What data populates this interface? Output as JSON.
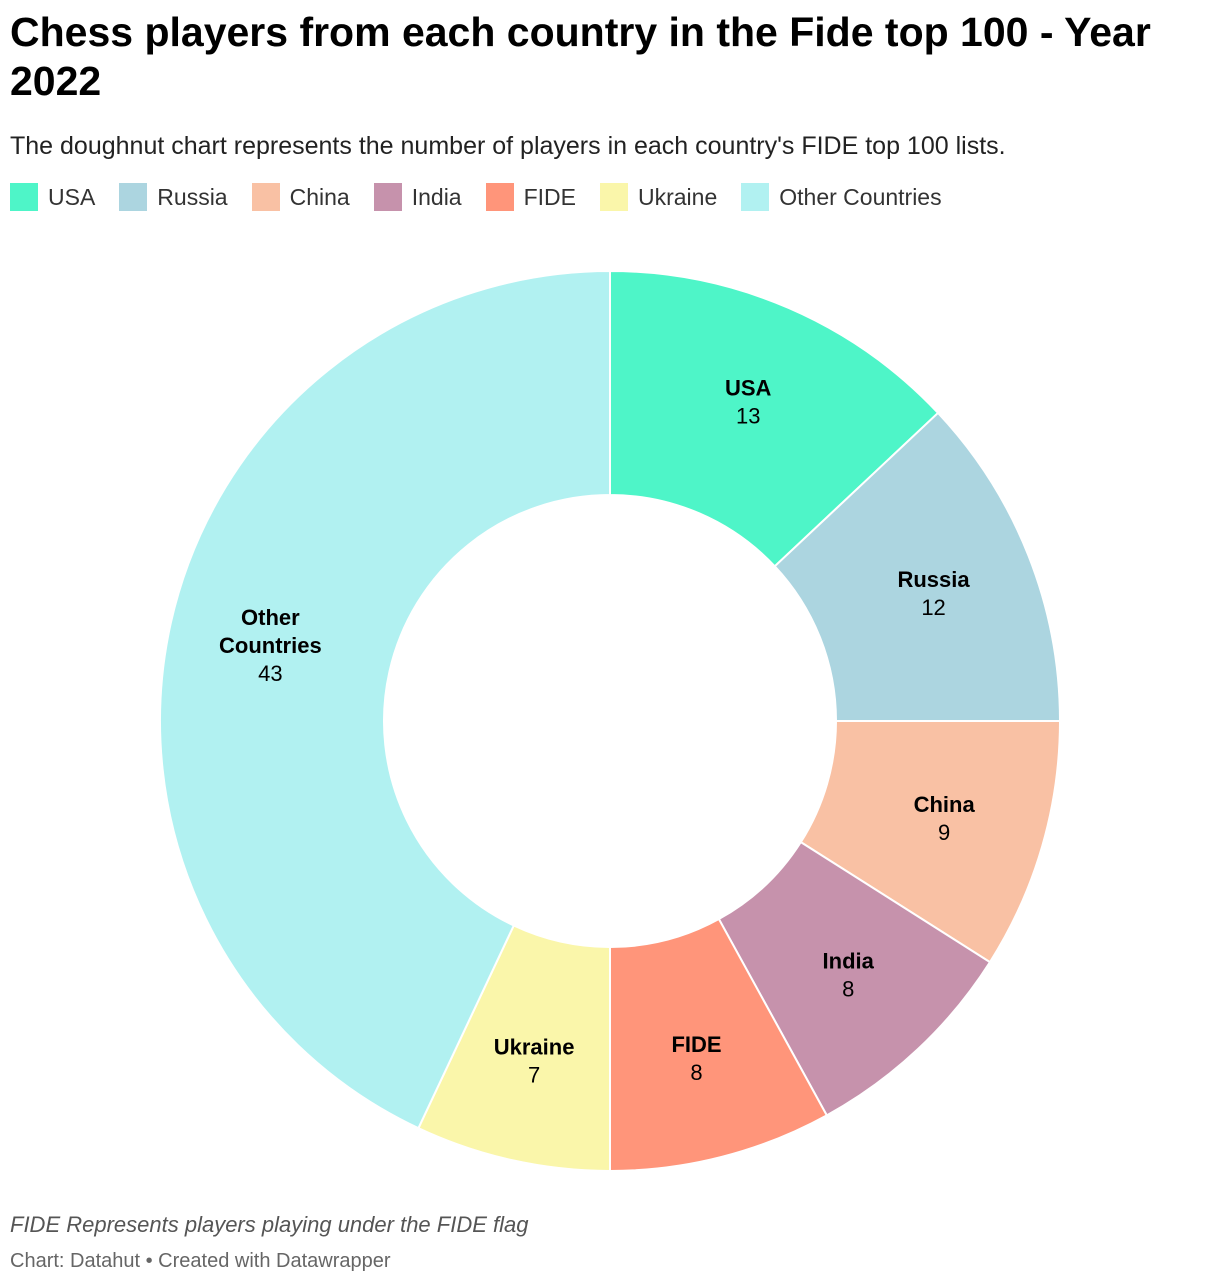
{
  "title": "Chess players from each country in the Fide top 100 - Year 2022",
  "subtitle": "The doughnut chart represents the number of players in each country's FIDE top 100 lists.",
  "note": "FIDE Represents players playing under the FIDE flag",
  "source": "Chart: Datahut • Created with Datawrapper",
  "chart_data": {
    "type": "pie",
    "variant": "doughnut",
    "title": "Chess players from each country in the Fide top 100 - Year 2022",
    "legend_position": "top-left",
    "categories": [
      "USA",
      "Russia",
      "China",
      "India",
      "FIDE",
      "Ukraine",
      "Other Countries"
    ],
    "values": [
      13,
      12,
      9,
      8,
      8,
      7,
      43
    ],
    "label_lines": [
      [
        "USA"
      ],
      [
        "Russia"
      ],
      [
        "China"
      ],
      [
        "India"
      ],
      [
        "FIDE"
      ],
      [
        "Ukraine"
      ],
      [
        "Other",
        "Countries"
      ]
    ],
    "colors": [
      "#4ef5c8",
      "#acd5e0",
      "#f9c1a4",
      "#c692ac",
      "#ff957a",
      "#faf6aa",
      "#b1f1f1"
    ]
  }
}
